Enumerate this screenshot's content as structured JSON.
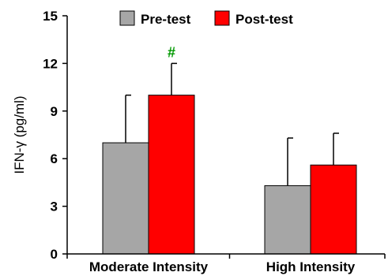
{
  "chart_data": {
    "type": "bar",
    "categories": [
      "Moderate Intensity",
      "High Intensity"
    ],
    "series": [
      {
        "name": "Pre-test",
        "color": "#a6a6a6",
        "values": [
          7.0,
          4.3
        ],
        "error": [
          3.0,
          3.0
        ]
      },
      {
        "name": "Post-test",
        "color": "#ff0000",
        "values": [
          10.0,
          5.6
        ],
        "error": [
          2.0,
          2.0
        ]
      }
    ],
    "ylabel": "IFN-γ (pg/ml)",
    "ylim": [
      0,
      15
    ],
    "yticks": [
      "0",
      "3",
      "6",
      "9",
      "12",
      "15"
    ],
    "grid": false,
    "legend_position": "top",
    "annotations": [
      {
        "text": "#",
        "category": "Moderate Intensity",
        "series": "Post-test",
        "color": "#009900"
      }
    ]
  }
}
